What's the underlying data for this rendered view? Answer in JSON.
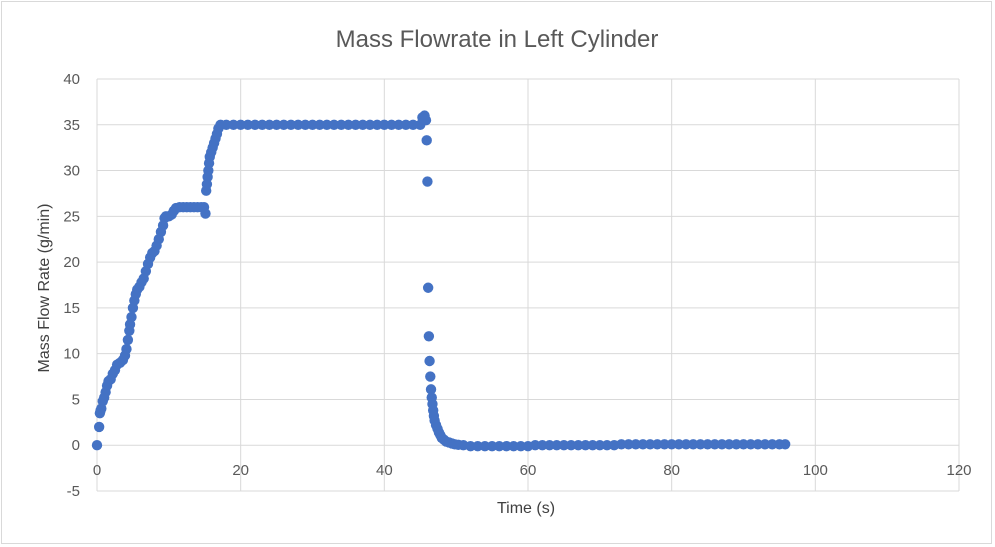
{
  "chart_data": {
    "type": "scatter",
    "title": "Mass Flowrate in Left Cylinder",
    "xlabel": "Time (s)",
    "ylabel": "Mass Flow Rate (g/min)",
    "xlim": [
      0,
      120
    ],
    "ylim": [
      -5,
      40
    ],
    "x_ticks": [
      0,
      20,
      40,
      60,
      80,
      100,
      120
    ],
    "y_ticks": [
      -5,
      0,
      5,
      10,
      15,
      20,
      25,
      30,
      35,
      40
    ],
    "grid": true,
    "legend": "none",
    "marker_color": "#4472c4",
    "series": [
      {
        "points": [
          [
            0.0,
            0.0
          ],
          [
            0.3,
            2.0
          ],
          [
            0.4,
            3.5
          ],
          [
            0.5,
            3.8
          ],
          [
            0.6,
            4.0
          ],
          [
            0.8,
            4.8
          ],
          [
            1.0,
            5.2
          ],
          [
            1.2,
            5.8
          ],
          [
            1.4,
            6.5
          ],
          [
            1.6,
            7.0
          ],
          [
            1.9,
            7.2
          ],
          [
            2.2,
            7.8
          ],
          [
            2.5,
            8.2
          ],
          [
            2.8,
            8.8
          ],
          [
            3.2,
            9.0
          ],
          [
            3.6,
            9.3
          ],
          [
            3.9,
            9.8
          ],
          [
            4.1,
            10.5
          ],
          [
            4.3,
            11.5
          ],
          [
            4.5,
            12.5
          ],
          [
            4.6,
            13.2
          ],
          [
            4.8,
            14.0
          ],
          [
            5.0,
            15.0
          ],
          [
            5.2,
            15.8
          ],
          [
            5.4,
            16.5
          ],
          [
            5.6,
            17.0
          ],
          [
            5.9,
            17.3
          ],
          [
            6.2,
            17.8
          ],
          [
            6.5,
            18.2
          ],
          [
            6.8,
            19.0
          ],
          [
            7.1,
            19.8
          ],
          [
            7.4,
            20.5
          ],
          [
            7.7,
            21.0
          ],
          [
            8.0,
            21.2
          ],
          [
            8.3,
            21.8
          ],
          [
            8.6,
            22.5
          ],
          [
            8.9,
            23.3
          ],
          [
            9.2,
            24.0
          ],
          [
            9.4,
            24.8
          ],
          [
            9.6,
            25.0
          ],
          [
            10.0,
            25.0
          ],
          [
            10.4,
            25.2
          ],
          [
            10.7,
            25.6
          ],
          [
            11.0,
            25.9
          ],
          [
            11.5,
            26.0
          ],
          [
            12.0,
            26.0
          ],
          [
            12.5,
            26.0
          ],
          [
            13.0,
            26.0
          ],
          [
            13.5,
            26.0
          ],
          [
            14.0,
            26.0
          ],
          [
            14.5,
            26.0
          ],
          [
            14.9,
            26.0
          ],
          [
            15.1,
            25.3
          ],
          [
            15.2,
            27.8
          ],
          [
            15.3,
            28.5
          ],
          [
            15.4,
            29.3
          ],
          [
            15.5,
            30.0
          ],
          [
            15.6,
            30.8
          ],
          [
            15.7,
            31.5
          ],
          [
            15.9,
            32.0
          ],
          [
            16.1,
            32.5
          ],
          [
            16.3,
            33.0
          ],
          [
            16.5,
            33.5
          ],
          [
            16.7,
            34.0
          ],
          [
            16.9,
            34.6
          ],
          [
            17.2,
            35.0
          ],
          [
            18,
            35.0
          ],
          [
            19,
            35.0
          ],
          [
            20,
            35.0
          ],
          [
            21,
            35.0
          ],
          [
            22,
            35.0
          ],
          [
            23,
            35.0
          ],
          [
            24,
            35.0
          ],
          [
            25,
            35.0
          ],
          [
            26,
            35.0
          ],
          [
            27,
            35.0
          ],
          [
            28,
            35.0
          ],
          [
            29,
            35.0
          ],
          [
            30,
            35.0
          ],
          [
            31,
            35.0
          ],
          [
            32,
            35.0
          ],
          [
            33,
            35.0
          ],
          [
            34,
            35.0
          ],
          [
            35,
            35.0
          ],
          [
            36,
            35.0
          ],
          [
            37,
            35.0
          ],
          [
            38,
            35.0
          ],
          [
            39,
            35.0
          ],
          [
            40,
            35.0
          ],
          [
            41,
            35.0
          ],
          [
            42,
            35.0
          ],
          [
            43,
            35.0
          ],
          [
            44,
            35.0
          ],
          [
            45,
            35.0
          ],
          [
            45.3,
            35.8
          ],
          [
            45.6,
            36.0
          ],
          [
            45.8,
            35.5
          ],
          [
            45.9,
            33.3
          ],
          [
            46.0,
            28.8
          ],
          [
            46.1,
            17.2
          ],
          [
            46.2,
            11.9
          ],
          [
            46.3,
            9.2
          ],
          [
            46.4,
            7.5
          ],
          [
            46.5,
            6.1
          ],
          [
            46.6,
            5.2
          ],
          [
            46.7,
            4.5
          ],
          [
            46.8,
            3.8
          ],
          [
            46.9,
            3.2
          ],
          [
            47.0,
            2.7
          ],
          [
            47.2,
            2.2
          ],
          [
            47.4,
            1.8
          ],
          [
            47.6,
            1.4
          ],
          [
            47.8,
            1.1
          ],
          [
            48.0,
            0.8
          ],
          [
            48.3,
            0.6
          ],
          [
            48.6,
            0.4
          ],
          [
            49.0,
            0.3
          ],
          [
            49.4,
            0.2
          ],
          [
            49.8,
            0.1
          ],
          [
            50.3,
            0.05
          ],
          [
            51,
            0.0
          ],
          [
            52,
            -0.1
          ],
          [
            53,
            -0.1
          ],
          [
            54,
            -0.1
          ],
          [
            55,
            -0.1
          ],
          [
            56,
            -0.1
          ],
          [
            57,
            -0.1
          ],
          [
            58,
            -0.1
          ],
          [
            59,
            -0.1
          ],
          [
            60,
            -0.1
          ],
          [
            61,
            0.0
          ],
          [
            62,
            0.0
          ],
          [
            63,
            0.0
          ],
          [
            64,
            0.0
          ],
          [
            65,
            0.0
          ],
          [
            66,
            0.0
          ],
          [
            67,
            0.0
          ],
          [
            68,
            0.0
          ],
          [
            69,
            0.0
          ],
          [
            70,
            0.0
          ],
          [
            71,
            0.0
          ],
          [
            72,
            0.0
          ],
          [
            73,
            0.1
          ],
          [
            74,
            0.1
          ],
          [
            75,
            0.1
          ],
          [
            76,
            0.1
          ],
          [
            77,
            0.1
          ],
          [
            78,
            0.1
          ],
          [
            79,
            0.1
          ],
          [
            80,
            0.1
          ],
          [
            81,
            0.1
          ],
          [
            82,
            0.1
          ],
          [
            83,
            0.1
          ],
          [
            84,
            0.1
          ],
          [
            85,
            0.1
          ],
          [
            86,
            0.1
          ],
          [
            87,
            0.1
          ],
          [
            88,
            0.1
          ],
          [
            89,
            0.1
          ],
          [
            90,
            0.1
          ],
          [
            91,
            0.1
          ],
          [
            92,
            0.1
          ],
          [
            93,
            0.1
          ],
          [
            94,
            0.1
          ],
          [
            95,
            0.1
          ],
          [
            95.8,
            0.1
          ]
        ]
      }
    ]
  }
}
